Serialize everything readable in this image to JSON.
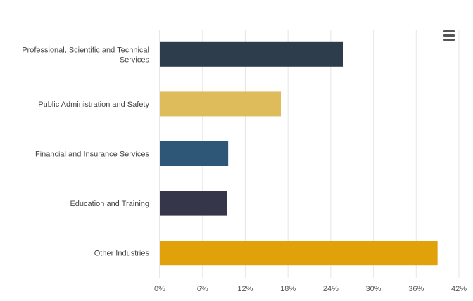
{
  "chart_data": {
    "type": "bar",
    "orientation": "horizontal",
    "categories": [
      "Professional, Scientific and Technical Services",
      "Public Administration and Safety",
      "Financial and Insurance Services",
      "Education and Training",
      "Other Industries"
    ],
    "category_lines": [
      [
        "Professional, Scientific and Technical",
        "Services"
      ],
      [
        "Public Administration and Safety"
      ],
      [
        "Financial and Insurance Services"
      ],
      [
        "Education and Training"
      ],
      [
        "Other Industries"
      ]
    ],
    "values": [
      25.7,
      17.0,
      9.6,
      9.4,
      39.0
    ],
    "colors": [
      "#2e3d4c",
      "#dfbc5b",
      "#2d5677",
      "#36364a",
      "#e0a10a"
    ],
    "xlim": [
      0,
      42
    ],
    "xticks": [
      0,
      6,
      12,
      18,
      24,
      30,
      36,
      42
    ],
    "xtick_labels": [
      "0%",
      "6%",
      "12%",
      "18%",
      "24%",
      "30%",
      "36%",
      "42%"
    ],
    "grid": true,
    "legend": "none",
    "title": "",
    "xlabel": "",
    "ylabel": ""
  },
  "menu": {
    "icon": "hamburger-menu-icon"
  }
}
